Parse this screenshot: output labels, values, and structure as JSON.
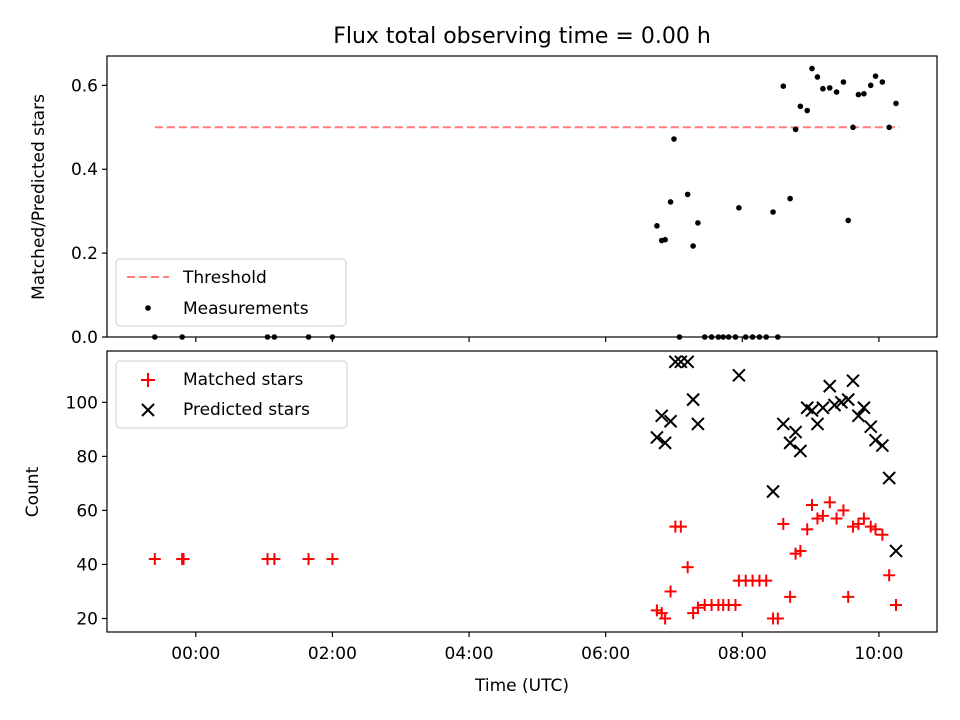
{
  "chart_data": [
    {
      "type": "scatter",
      "title": "Flux total observing time = 0.00 h",
      "xlabel": "",
      "ylabel": "Matched/Predicted stars",
      "xlim": [
        -1.3,
        10.85
      ],
      "ylim": [
        0,
        0.67
      ],
      "xticks": [
        0,
        2,
        4,
        6,
        8,
        10
      ],
      "yticks": [
        0.0,
        0.2,
        0.4,
        0.6
      ],
      "ytick_labels": [
        "0.0",
        "0.2",
        "0.4",
        "0.6"
      ],
      "legend": {
        "position": "lower-left",
        "entries": [
          "Threshold",
          "Measurements"
        ]
      },
      "threshold": {
        "name": "Threshold",
        "y": 0.5,
        "x": [
          -0.6,
          10.3
        ],
        "color": "#ff7f7f",
        "style": "dashed"
      },
      "series": [
        {
          "name": "Measurements",
          "marker": "dot",
          "color": "#000000",
          "points": [
            [
              -0.6,
              0.0
            ],
            [
              -0.2,
              0.0
            ],
            [
              1.05,
              0.0
            ],
            [
              1.15,
              0.0
            ],
            [
              1.65,
              0.0
            ],
            [
              2.0,
              0.0
            ],
            [
              6.75,
              0.265
            ],
            [
              6.82,
              0.23
            ],
            [
              6.87,
              0.232
            ],
            [
              6.95,
              0.322
            ],
            [
              7.0,
              0.472
            ],
            [
              7.08,
              0.0
            ],
            [
              7.2,
              0.34
            ],
            [
              7.28,
              0.217
            ],
            [
              7.35,
              0.272
            ],
            [
              7.45,
              0.0
            ],
            [
              7.55,
              0.0
            ],
            [
              7.65,
              0.0
            ],
            [
              7.72,
              0.0
            ],
            [
              7.8,
              0.0
            ],
            [
              7.9,
              0.0
            ],
            [
              7.95,
              0.308
            ],
            [
              8.05,
              0.0
            ],
            [
              8.15,
              0.0
            ],
            [
              8.25,
              0.0
            ],
            [
              8.35,
              0.0
            ],
            [
              8.45,
              0.298
            ],
            [
              8.52,
              0.0
            ],
            [
              8.6,
              0.598
            ],
            [
              8.7,
              0.33
            ],
            [
              8.78,
              0.495
            ],
            [
              8.85,
              0.55
            ],
            [
              8.95,
              0.54
            ],
            [
              9.02,
              0.64
            ],
            [
              9.1,
              0.62
            ],
            [
              9.18,
              0.592
            ],
            [
              9.28,
              0.594
            ],
            [
              9.38,
              0.584
            ],
            [
              9.48,
              0.608
            ],
            [
              9.55,
              0.278
            ],
            [
              9.62,
              0.5
            ],
            [
              9.7,
              0.578
            ],
            [
              9.78,
              0.58
            ],
            [
              9.88,
              0.6
            ],
            [
              9.95,
              0.622
            ],
            [
              10.05,
              0.608
            ],
            [
              10.15,
              0.5
            ],
            [
              10.25,
              0.557
            ]
          ]
        }
      ]
    },
    {
      "type": "scatter",
      "title": "",
      "xlabel": "Time (UTC)",
      "ylabel": "Count",
      "xlim": [
        -1.3,
        10.85
      ],
      "ylim": [
        15,
        119
      ],
      "xticks": [
        0,
        2,
        4,
        6,
        8,
        10
      ],
      "xtick_labels": [
        "00:00",
        "02:00",
        "04:00",
        "06:00",
        "08:00",
        "10:00"
      ],
      "yticks": [
        20,
        40,
        60,
        80,
        100
      ],
      "legend": {
        "position": "top-left",
        "entries": [
          "Matched stars",
          "Predicted stars"
        ]
      },
      "series": [
        {
          "name": "Matched stars",
          "marker": "plus",
          "color": "#ff0000",
          "points": [
            [
              -0.6,
              42
            ],
            [
              -0.2,
              42
            ],
            [
              -0.18,
              42
            ],
            [
              1.05,
              42
            ],
            [
              1.15,
              42
            ],
            [
              1.65,
              42
            ],
            [
              2.0,
              42
            ],
            [
              6.75,
              23
            ],
            [
              6.82,
              22
            ],
            [
              6.87,
              20
            ],
            [
              6.95,
              30
            ],
            [
              7.02,
              54
            ],
            [
              7.1,
              54
            ],
            [
              7.2,
              39
            ],
            [
              7.28,
              22
            ],
            [
              7.35,
              24
            ],
            [
              7.45,
              25
            ],
            [
              7.55,
              25
            ],
            [
              7.65,
              25
            ],
            [
              7.72,
              25
            ],
            [
              7.8,
              25
            ],
            [
              7.9,
              25
            ],
            [
              7.95,
              34
            ],
            [
              8.05,
              34
            ],
            [
              8.15,
              34
            ],
            [
              8.25,
              34
            ],
            [
              8.35,
              34
            ],
            [
              8.45,
              20
            ],
            [
              8.52,
              20
            ],
            [
              8.6,
              55
            ],
            [
              8.7,
              28
            ],
            [
              8.78,
              44
            ],
            [
              8.85,
              45
            ],
            [
              8.95,
              53
            ],
            [
              9.02,
              62
            ],
            [
              9.1,
              57
            ],
            [
              9.18,
              58
            ],
            [
              9.28,
              63
            ],
            [
              9.38,
              57
            ],
            [
              9.48,
              60
            ],
            [
              9.55,
              28
            ],
            [
              9.62,
              54
            ],
            [
              9.7,
              55
            ],
            [
              9.78,
              57
            ],
            [
              9.88,
              54
            ],
            [
              9.95,
              53
            ],
            [
              10.05,
              51
            ],
            [
              10.15,
              36
            ],
            [
              10.25,
              25
            ]
          ]
        },
        {
          "name": "Predicted stars",
          "marker": "x",
          "color": "#000000",
          "points": [
            [
              6.75,
              87
            ],
            [
              6.82,
              95
            ],
            [
              6.87,
              85
            ],
            [
              6.95,
              93
            ],
            [
              7.02,
              115
            ],
            [
              7.1,
              115
            ],
            [
              7.2,
              115
            ],
            [
              7.28,
              101
            ],
            [
              7.35,
              92
            ],
            [
              7.95,
              110
            ],
            [
              8.45,
              67
            ],
            [
              8.6,
              92
            ],
            [
              8.7,
              85
            ],
            [
              8.78,
              89
            ],
            [
              8.85,
              82
            ],
            [
              8.95,
              98
            ],
            [
              9.02,
              97
            ],
            [
              9.1,
              92
            ],
            [
              9.18,
              98
            ],
            [
              9.28,
              106
            ],
            [
              9.35,
              99
            ],
            [
              9.45,
              100
            ],
            [
              9.55,
              101
            ],
            [
              9.62,
              108
            ],
            [
              9.7,
              95
            ],
            [
              9.78,
              98
            ],
            [
              9.88,
              91
            ],
            [
              9.95,
              86
            ],
            [
              10.05,
              84
            ],
            [
              10.15,
              72
            ],
            [
              10.25,
              45
            ]
          ]
        }
      ]
    }
  ]
}
